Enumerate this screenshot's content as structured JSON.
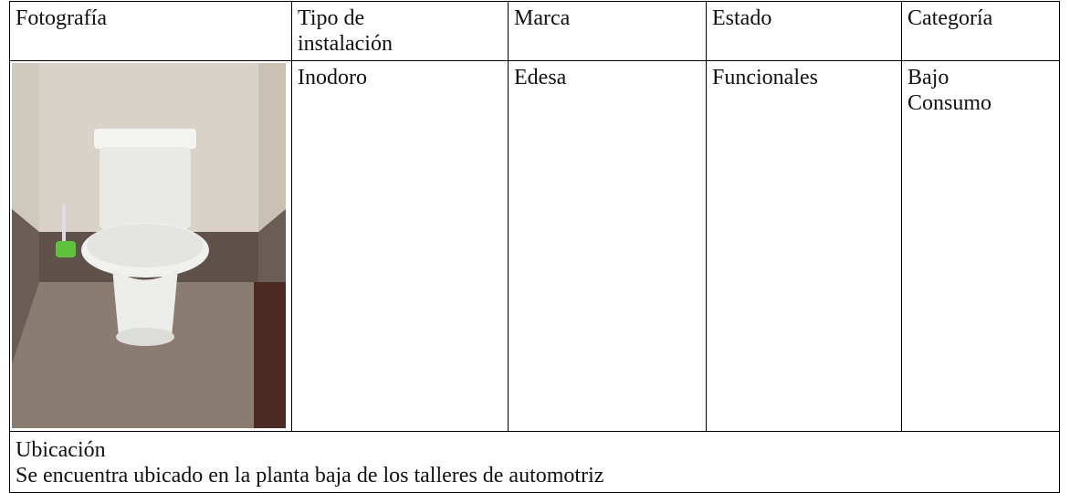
{
  "table": {
    "header": [
      "Fotografía",
      "Tipo de instalación",
      "Marca",
      "Estado",
      "Categoría"
    ],
    "row": [
      "Inodoro",
      "Edesa",
      "Funcionales",
      "Bajo Consumo"
    ],
    "location": {
      "label": "Ubicación",
      "text": "Se encuentra ubicado en la planta baja de los talleres de automotriz"
    }
  }
}
